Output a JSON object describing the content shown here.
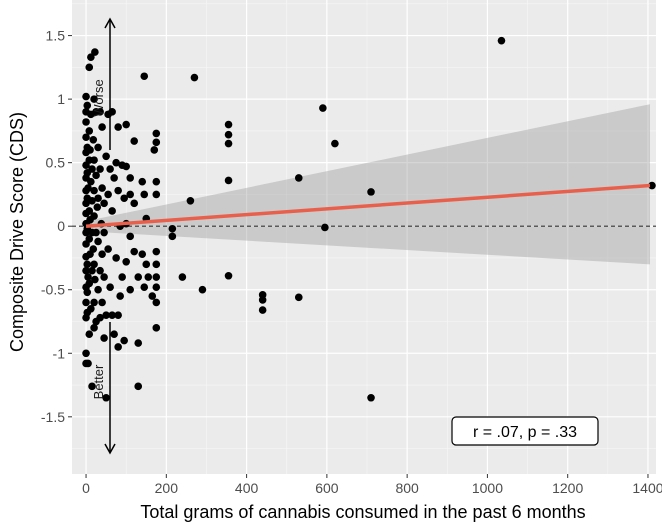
{
  "chart_data": {
    "type": "scatter",
    "title": "",
    "xlabel": "Total grams of cannabis consumed in the past 6 months",
    "ylabel": "Composite Drive Score (CDS)",
    "xlim": [
      -35,
      1420
    ],
    "ylim": [
      -1.95,
      1.78
    ],
    "x_ticks": [
      0,
      200,
      400,
      600,
      800,
      1000,
      1200,
      1400
    ],
    "y_ticks": [
      -1.5,
      -1,
      -0.5,
      0,
      0.5,
      1,
      1.5
    ],
    "y_tick_labels": [
      "-1.5",
      "-1",
      "-0.5",
      "0",
      "0.5",
      "1",
      "1.5"
    ],
    "grid": true,
    "reference_line": {
      "y": 0,
      "style": "dashed"
    },
    "annotations": {
      "worse": "Worse",
      "better": "Better"
    },
    "stat_label": "r = .07, p = .33",
    "regression": {
      "x": [
        0,
        1405
      ],
      "y": [
        0.0,
        0.32
      ],
      "color": "#E8604C",
      "ci_upper": [
        0.04,
        0.96
      ],
      "ci_lower": [
        -0.04,
        -0.3
      ]
    },
    "point_color": "#000000",
    "points": [
      [
        0,
        1.02
      ],
      [
        0,
        0.9
      ],
      [
        0,
        0.82
      ],
      [
        0,
        0.7
      ],
      [
        0,
        0.58
      ],
      [
        0,
        0.48
      ],
      [
        0,
        0.38
      ],
      [
        0,
        0.28
      ],
      [
        0,
        0.18
      ],
      [
        0,
        0.1
      ],
      [
        0,
        0.02
      ],
      [
        0,
        -0.05
      ],
      [
        0,
        -0.14
      ],
      [
        0,
        -0.24
      ],
      [
        0,
        -0.35
      ],
      [
        0,
        -0.48
      ],
      [
        0,
        -0.6
      ],
      [
        0,
        -0.72
      ],
      [
        0,
        -1.0
      ],
      [
        0,
        -1.08
      ],
      [
        3,
        0.95
      ],
      [
        3,
        0.62
      ],
      [
        3,
        0.42
      ],
      [
        3,
        0.22
      ],
      [
        3,
        -0.02
      ],
      [
        3,
        -0.3
      ],
      [
        3,
        -0.52
      ],
      [
        3,
        -0.68
      ],
      [
        5,
        0.3
      ],
      [
        5,
        -0.4
      ],
      [
        5,
        -1.08
      ],
      [
        8,
        1.25
      ],
      [
        8,
        0.75
      ],
      [
        8,
        0.52
      ],
      [
        8,
        0.12
      ],
      [
        8,
        -0.1
      ],
      [
        8,
        -0.45
      ],
      [
        8,
        -0.85
      ],
      [
        10,
        0.6
      ],
      [
        10,
        0.05
      ],
      [
        10,
        -0.22
      ],
      [
        12,
        1.33
      ],
      [
        12,
        0.88
      ],
      [
        12,
        0.35
      ],
      [
        12,
        -0.65
      ],
      [
        15,
        0.45
      ],
      [
        15,
        0.2
      ],
      [
        15,
        -0.05
      ],
      [
        15,
        -0.35
      ],
      [
        15,
        -1.26
      ],
      [
        18,
        0.68
      ],
      [
        18,
        -0.18
      ],
      [
        20,
        1.0
      ],
      [
        20,
        0.52
      ],
      [
        20,
        0.28
      ],
      [
        20,
        0.08
      ],
      [
        20,
        -0.3
      ],
      [
        20,
        -0.6
      ],
      [
        20,
        -0.8
      ],
      [
        22,
        1.37
      ],
      [
        22,
        -0.42
      ],
      [
        25,
        0.9
      ],
      [
        25,
        0.4
      ],
      [
        25,
        -0.05
      ],
      [
        25,
        -0.75
      ],
      [
        28,
        0.15
      ],
      [
        30,
        0.62
      ],
      [
        30,
        0.22
      ],
      [
        30,
        -0.12
      ],
      [
        30,
        -0.5
      ],
      [
        35,
        0.9
      ],
      [
        35,
        0.45
      ],
      [
        35,
        -0.35
      ],
      [
        35,
        -0.72
      ],
      [
        38,
        0.02
      ],
      [
        40,
        0.78
      ],
      [
        40,
        0.3
      ],
      [
        40,
        -0.22
      ],
      [
        40,
        -0.6
      ],
      [
        45,
        0.18
      ],
      [
        45,
        -0.05
      ],
      [
        45,
        -0.4
      ],
      [
        45,
        -0.88
      ],
      [
        50,
        0.55
      ],
      [
        50,
        -0.7
      ],
      [
        50,
        -1.35
      ],
      [
        55,
        0.88
      ],
      [
        55,
        0.25
      ],
      [
        55,
        -0.18
      ],
      [
        60,
        0.45
      ],
      [
        60,
        -0.48
      ],
      [
        65,
        0.9
      ],
      [
        65,
        0.12
      ],
      [
        65,
        -0.7
      ],
      [
        70,
        0.38
      ],
      [
        70,
        -0.85
      ],
      [
        75,
        0.5
      ],
      [
        75,
        -0.25
      ],
      [
        80,
        0.78
      ],
      [
        80,
        0.28
      ],
      [
        80,
        -0.7
      ],
      [
        80,
        -0.95
      ],
      [
        85,
        0.0
      ],
      [
        85,
        -0.55
      ],
      [
        90,
        0.48
      ],
      [
        90,
        -0.4
      ],
      [
        95,
        0.22
      ],
      [
        95,
        -0.9
      ],
      [
        100,
        0.8
      ],
      [
        100,
        0.47
      ],
      [
        100,
        0.02
      ],
      [
        100,
        -0.28
      ],
      [
        110,
        0.38
      ],
      [
        110,
        0.25
      ],
      [
        110,
        -0.08
      ],
      [
        110,
        -0.5
      ],
      [
        120,
        0.67
      ],
      [
        120,
        0.18
      ],
      [
        120,
        -0.2
      ],
      [
        130,
        -0.4
      ],
      [
        130,
        -0.92
      ],
      [
        130,
        -1.26
      ],
      [
        140,
        0.35
      ],
      [
        140,
        -0.22
      ],
      [
        145,
        1.18
      ],
      [
        145,
        0.25
      ],
      [
        145,
        -0.48
      ],
      [
        150,
        0.06
      ],
      [
        150,
        -0.3
      ],
      [
        155,
        -0.4
      ],
      [
        165,
        -0.55
      ],
      [
        170,
        0.6
      ],
      [
        175,
        0.73
      ],
      [
        175,
        0.66
      ],
      [
        175,
        0.35
      ],
      [
        175,
        0.25
      ],
      [
        175,
        -0.2
      ],
      [
        175,
        -0.3
      ],
      [
        175,
        -0.4
      ],
      [
        175,
        -0.48
      ],
      [
        175,
        -0.6
      ],
      [
        175,
        -0.8
      ],
      [
        215,
        -0.02
      ],
      [
        215,
        -0.08
      ],
      [
        240,
        -0.4
      ],
      [
        260,
        0.2
      ],
      [
        270,
        1.17
      ],
      [
        290,
        -0.5
      ],
      [
        355,
        0.8
      ],
      [
        355,
        0.72
      ],
      [
        355,
        0.65
      ],
      [
        355,
        0.36
      ],
      [
        355,
        -0.39
      ],
      [
        440,
        -0.58
      ],
      [
        440,
        -0.54
      ],
      [
        440,
        -0.66
      ],
      [
        530,
        0.38
      ],
      [
        530,
        -0.56
      ],
      [
        590,
        0.93
      ],
      [
        595,
        -0.01
      ],
      [
        620,
        0.65
      ],
      [
        710,
        0.27
      ],
      [
        710,
        -1.35
      ],
      [
        1035,
        1.46
      ],
      [
        1410,
        0.32
      ]
    ]
  }
}
